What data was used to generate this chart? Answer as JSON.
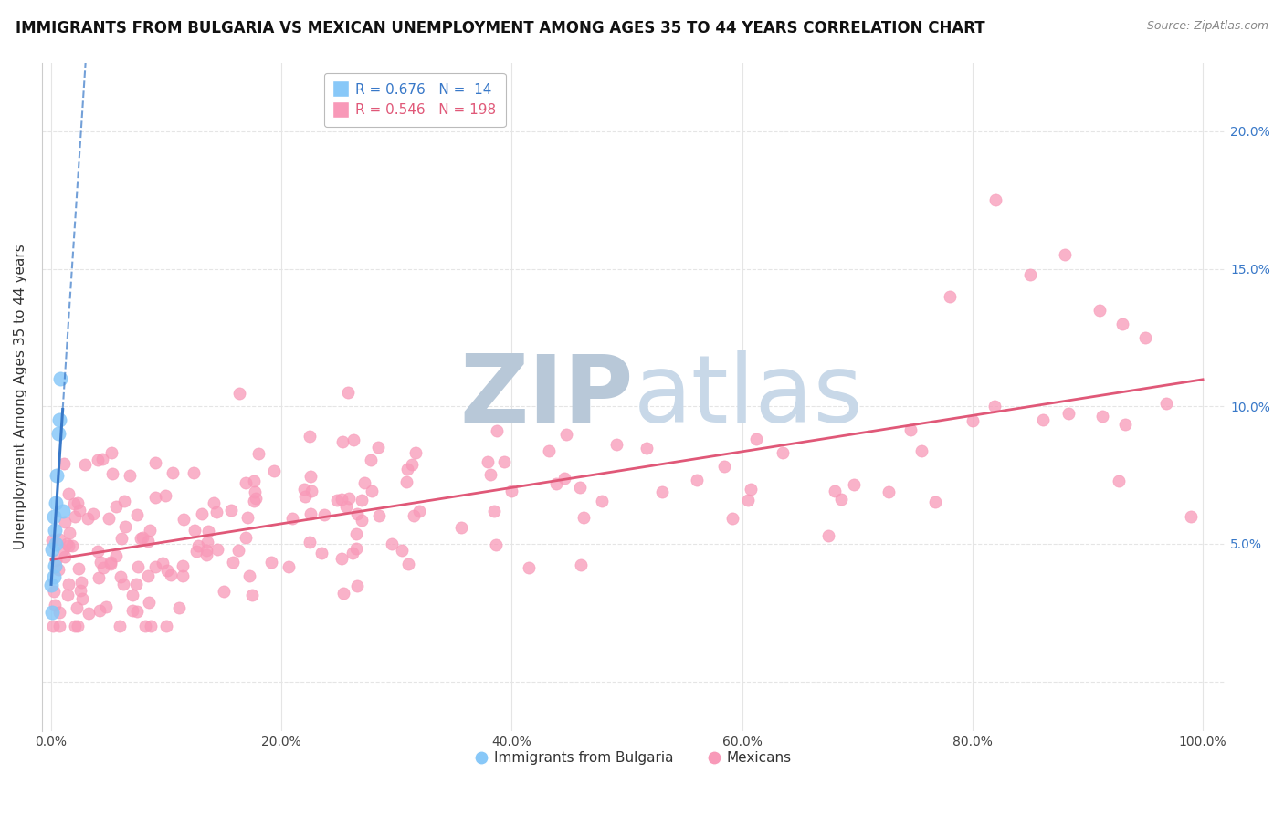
{
  "title": "IMMIGRANTS FROM BULGARIA VS MEXICAN UNEMPLOYMENT AMONG AGES 35 TO 44 YEARS CORRELATION CHART",
  "source": "Source: ZipAtlas.com",
  "ylabel": "Unemployment Among Ages 35 to 44 years",
  "xlim": [
    -0.008,
    1.02
  ],
  "ylim": [
    -0.018,
    0.225
  ],
  "yticks": [
    0.0,
    0.05,
    0.1,
    0.15,
    0.2
  ],
  "ytick_labels_right": [
    "",
    "5.0%",
    "10.0%",
    "15.0%",
    "20.0%"
  ],
  "xticks": [
    0.0,
    0.2,
    0.4,
    0.6,
    0.8,
    1.0
  ],
  "xtick_labels": [
    "0.0%",
    "20.0%",
    "40.0%",
    "60.0%",
    "80.0%",
    "100.0%"
  ],
  "bulgaria_color": "#88c8f8",
  "mexico_color": "#f899b8",
  "bulgaria_line_color": "#3878c8",
  "mexico_line_color": "#e05878",
  "bulgaria_R": 0.676,
  "bulgaria_N": 14,
  "mexico_R": 0.546,
  "mexico_N": 198,
  "background_color": "#ffffff",
  "grid_color": "#e5e5e5",
  "watermark_color": "#c8d8e8",
  "legend_label_bulgaria": "Immigrants from Bulgaria",
  "legend_label_mexico": "Mexicans",
  "title_fontsize": 12,
  "source_fontsize": 9,
  "axis_label_fontsize": 11,
  "tick_fontsize": 10,
  "legend_fontsize": 11,
  "legend_R_color_bulgaria": "#3878c8",
  "legend_R_color_mexico": "#e05878",
  "scatter_size_bulgaria": 120,
  "scatter_size_mexico": 90
}
